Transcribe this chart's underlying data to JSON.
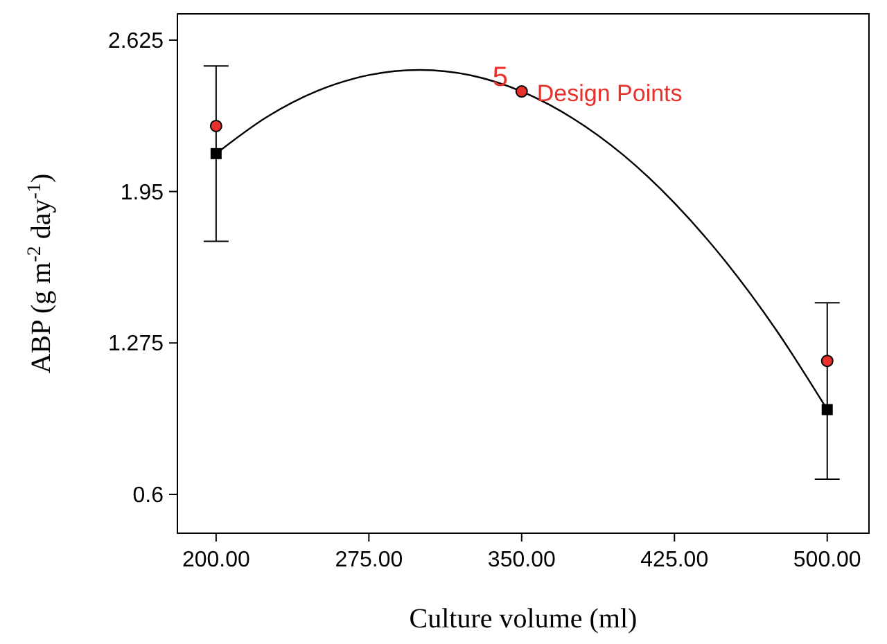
{
  "chart_data": {
    "type": "scatter",
    "xlabel": "Culture volume (ml)",
    "ylabel": "ABP (g m$^{-2}$ day$^{-1}$)",
    "xlim": [
      181,
      520.5
    ],
    "ylim": [
      0.427,
      2.742
    ],
    "xticks": [
      {
        "value": 200,
        "label": "200.00"
      },
      {
        "value": 275,
        "label": "275.00"
      },
      {
        "value": 350,
        "label": "350.00"
      },
      {
        "value": 425,
        "label": "425.00"
      },
      {
        "value": 500,
        "label": "500.00"
      }
    ],
    "yticks": [
      {
        "value": 0.6,
        "label": "0.6"
      },
      {
        "value": 1.275,
        "label": "1.275"
      },
      {
        "value": 1.95,
        "label": "1.95"
      },
      {
        "value": 2.625,
        "label": "2.625"
      }
    ],
    "grid": false,
    "annotations": [
      {
        "text": "5 Design Points",
        "x": 350,
        "y": 2.396
      }
    ],
    "series": [
      {
        "type": "line",
        "color": "#000000",
        "marker": "none",
        "line_style": "solid",
        "x": [
          200,
          225,
          250,
          275,
          300,
          325,
          350,
          375,
          400,
          425,
          450,
          475,
          500
        ],
        "values": [
          2.119,
          2.283,
          2.4,
          2.469,
          2.492,
          2.468,
          2.396,
          2.277,
          2.112,
          1.899,
          1.639,
          1.332,
          0.978
        ]
      },
      {
        "color": "#000000",
        "marker": "square",
        "x": [
          200,
          500
        ],
        "values": [
          2.119,
          0.978
        ],
        "errors": [
          [
            1.728,
            2.51
          ],
          [
            0.668,
            1.454
          ]
        ]
      },
      {
        "color": "#e8312a",
        "marker": "circle",
        "x": [
          200,
          350,
          500
        ],
        "values": [
          2.242,
          2.396,
          1.195
        ]
      }
    ]
  }
}
